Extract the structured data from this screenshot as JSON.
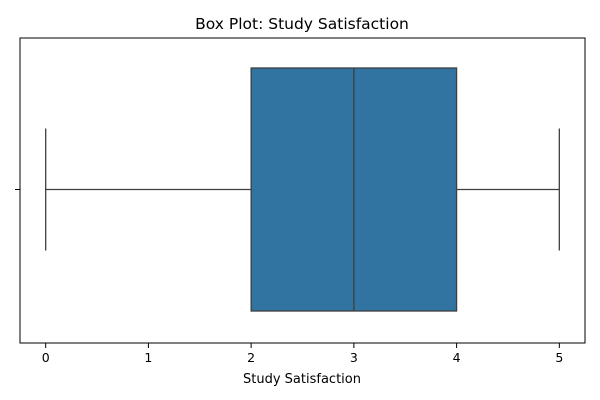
{
  "chart_data": {
    "type": "box",
    "title": "Box Plot: Study Satisfaction",
    "xlabel": "Study Satisfaction",
    "ylabel": "",
    "orientation": "horizontal",
    "xlim": [
      -0.25,
      5.25
    ],
    "xticks": [
      0,
      1,
      2,
      3,
      4,
      5
    ],
    "xtick_labels": [
      "0",
      "1",
      "2",
      "3",
      "4",
      "5"
    ],
    "grid": false,
    "box": {
      "whisker_low": 0,
      "q1": 2,
      "median": 3,
      "q3": 4,
      "whisker_high": 5,
      "outliers": []
    },
    "colors": {
      "box_fill": "#3274a1",
      "lines": "#3f3f3f",
      "axes": "#000000"
    }
  }
}
